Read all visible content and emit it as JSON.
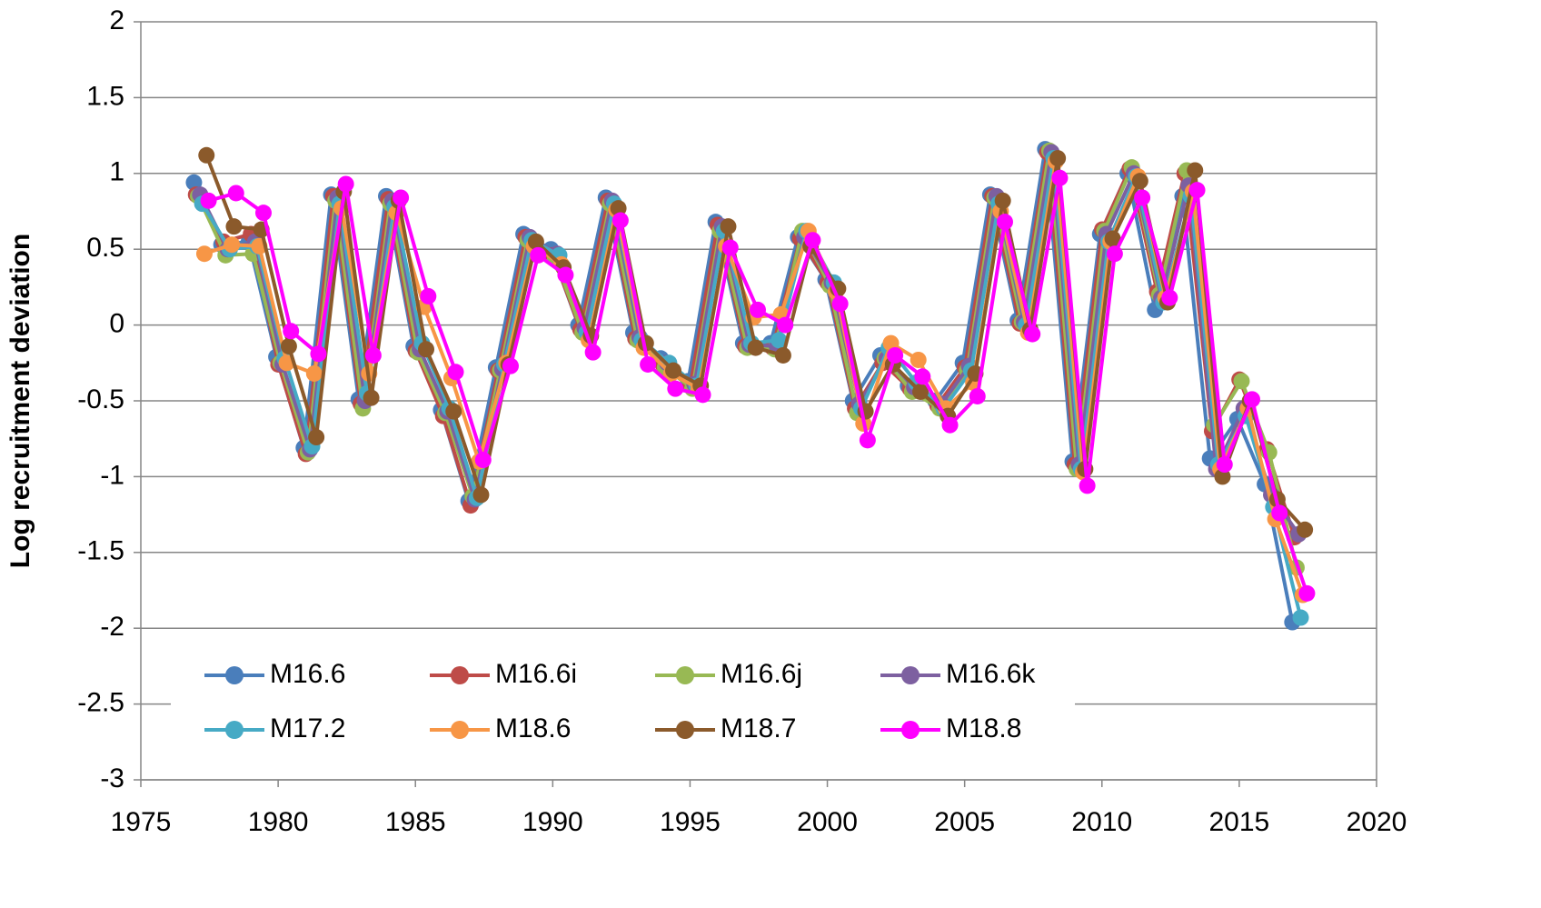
{
  "chart_data": {
    "type": "line",
    "y_label": "Log recruitment deviation",
    "x": [
      1977,
      1978,
      1979,
      1980,
      1981,
      1982,
      1983,
      1984,
      1985,
      1986,
      1987,
      1988,
      1989,
      1990,
      1991,
      1992,
      1993,
      1994,
      1995,
      1996,
      1997,
      1998,
      1999,
      2000,
      2001,
      2002,
      2003,
      2004,
      2005,
      2006,
      2007,
      2008,
      2009,
      2010,
      2011,
      2012,
      2013,
      2014,
      2015,
      2016,
      2017
    ],
    "xlim": [
      1975,
      2020
    ],
    "xticks": [
      1975,
      1980,
      1985,
      1990,
      1995,
      2000,
      2005,
      2010,
      2015,
      2020
    ],
    "ylim": [
      -3,
      2
    ],
    "yticks": [
      -3,
      -2.5,
      -2,
      -1.5,
      -1,
      -0.5,
      0,
      0.5,
      1,
      1.5,
      2
    ],
    "grid": true,
    "series": [
      {
        "name": "M16.6",
        "color": "#4a7ebb",
        "values": [
          0.94,
          0.53,
          0.55,
          -0.21,
          -0.81,
          0.86,
          -0.49,
          0.85,
          -0.14,
          -0.56,
          -1.16,
          -0.28,
          0.6,
          0.5,
          0,
          0.84,
          -0.05,
          -0.22,
          -0.37,
          0.68,
          -0.12,
          -0.12,
          0.58,
          0.3,
          -0.5,
          -0.2,
          -0.4,
          -0.5,
          -0.25,
          0.86,
          0.03,
          1.16,
          -0.9,
          0.6,
          1,
          0.1,
          0.85,
          -0.88,
          -0.62,
          -1.05,
          -1.96
        ]
      },
      {
        "name": "M16.6i",
        "color": "#be4b48",
        "values": [
          0.86,
          0.55,
          0.6,
          -0.26,
          -0.85,
          0.85,
          -0.52,
          0.83,
          -0.17,
          -0.6,
          -1.19,
          -0.3,
          0.58,
          0.46,
          -0.03,
          0.82,
          -0.09,
          -0.26,
          -0.4,
          0.66,
          -0.14,
          -0.15,
          0.57,
          0.28,
          -0.55,
          -0.25,
          -0.42,
          -0.53,
          -0.28,
          0.85,
          0.01,
          1.14,
          -0.92,
          0.63,
          1.03,
          0.22,
          1,
          -0.7,
          -0.36,
          -0.82,
          -1.4
        ]
      },
      {
        "name": "M16.6j",
        "color": "#98b954",
        "values": [
          0.85,
          0.46,
          0.47,
          -0.25,
          -0.84,
          0.82,
          -0.55,
          0.8,
          -0.18,
          -0.58,
          -1.13,
          -0.3,
          0.56,
          0.44,
          -0.05,
          0.8,
          -0.1,
          -0.28,
          -0.42,
          0.62,
          -0.15,
          -0.16,
          0.62,
          0.26,
          -0.58,
          -0.22,
          -0.44,
          -0.55,
          -0.3,
          0.84,
          0.02,
          1.15,
          -0.95,
          0.62,
          1.04,
          0.2,
          1.02,
          -0.66,
          -0.37,
          -0.84,
          -1.6
        ]
      },
      {
        "name": "M16.6k",
        "color": "#7d60a0",
        "values": [
          0.86,
          0.5,
          0.55,
          -0.26,
          -0.82,
          0.84,
          -0.5,
          0.82,
          -0.16,
          -0.57,
          -1.15,
          -0.29,
          0.58,
          0.47,
          -0.02,
          0.82,
          -0.08,
          -0.25,
          -0.39,
          0.65,
          -0.13,
          -0.14,
          0.58,
          0.28,
          -0.52,
          -0.22,
          -0.41,
          -0.52,
          -0.27,
          0.85,
          0.02,
          1.14,
          -0.92,
          0.6,
          1,
          0.18,
          0.92,
          -0.95,
          -0.55,
          -1.12,
          -1.38
        ]
      },
      {
        "name": "M17.2",
        "color": "#46aac5",
        "values": [
          0.8,
          0.5,
          0.52,
          -0.22,
          -0.8,
          0.8,
          -0.45,
          0.78,
          -0.12,
          -0.55,
          -1.14,
          -0.26,
          0.56,
          0.46,
          -0.05,
          0.8,
          -0.1,
          -0.25,
          -0.4,
          0.62,
          -0.12,
          -0.1,
          0.62,
          0.28,
          -0.55,
          -0.15,
          -0.38,
          -0.55,
          -0.3,
          0.8,
          0,
          1.1,
          -0.95,
          0.55,
          0.98,
          0.15,
          0.85,
          -0.92,
          -0.6,
          -1.2,
          -1.93
        ]
      },
      {
        "name": "M18.6",
        "color": "#f79646",
        "values": [
          0.47,
          0.53,
          0.52,
          -0.25,
          -0.32,
          0.77,
          -0.32,
          0.74,
          0.12,
          -0.35,
          -0.9,
          -0.25,
          0.52,
          0.4,
          -0.1,
          0.76,
          -0.15,
          -0.32,
          -0.42,
          0.52,
          0.05,
          0.07,
          0.62,
          0.22,
          -0.65,
          -0.12,
          -0.23,
          -0.55,
          -0.38,
          0.75,
          -0.05,
          1.08,
          -0.97,
          0.55,
          0.98,
          0.18,
          0.88,
          -0.95,
          -0.55,
          -1.28,
          -1.78
        ]
      },
      {
        "name": "M18.7",
        "color": "#8b5a2b",
        "values": [
          1.12,
          0.65,
          0.63,
          -0.14,
          -0.74,
          0.88,
          -0.48,
          0.82,
          -0.16,
          -0.57,
          -1.12,
          -0.26,
          0.55,
          0.38,
          -0.07,
          0.77,
          -0.12,
          -0.3,
          -0.4,
          0.65,
          -0.15,
          -0.2,
          0.52,
          0.24,
          -0.57,
          -0.26,
          -0.44,
          -0.6,
          -0.32,
          0.82,
          -0.03,
          1.1,
          -0.95,
          0.57,
          0.95,
          0.15,
          1.02,
          -1,
          -0.5,
          -1.15,
          -1.35
        ]
      },
      {
        "name": "M18.8",
        "color": "#ff00ff",
        "values": [
          0.82,
          0.87,
          0.74,
          -0.04,
          -0.19,
          0.93,
          -0.2,
          0.84,
          0.19,
          -0.31,
          -0.89,
          -0.27,
          0.46,
          0.33,
          -0.18,
          0.69,
          -0.26,
          -0.42,
          -0.46,
          0.51,
          0.1,
          0,
          0.56,
          0.14,
          -0.76,
          -0.2,
          -0.34,
          -0.66,
          -0.47,
          0.68,
          -0.06,
          0.97,
          -1.06,
          0.47,
          0.84,
          0.18,
          0.89,
          -0.92,
          -0.49,
          -1.24,
          -1.77
        ]
      }
    ]
  }
}
